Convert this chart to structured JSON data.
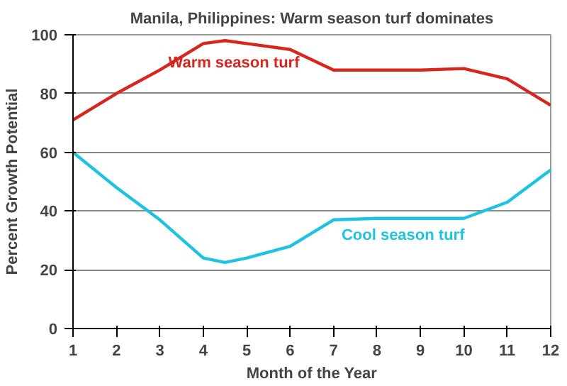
{
  "chart_data": {
    "type": "line",
    "title": "Manila, Philippines: Warm season turf dominates",
    "xlabel": "Month of the Year",
    "ylabel": "Percent Growth Potential",
    "x": [
      1,
      2,
      3,
      4,
      4.5,
      5,
      6,
      7,
      8,
      9,
      10,
      11,
      12
    ],
    "series": [
      {
        "name": "Warm season turf",
        "color": "#d7261e",
        "values": [
          71,
          80,
          88,
          97,
          98,
          97,
          95,
          88,
          88,
          88,
          88.5,
          85,
          76
        ]
      },
      {
        "name": "Cool season turf",
        "color": "#1fc3e0",
        "values": [
          60,
          48,
          37,
          24,
          22.5,
          24,
          28,
          37,
          37.5,
          37.5,
          37.5,
          43,
          54
        ]
      }
    ],
    "xlim": [
      1,
      12
    ],
    "xticks": [
      1,
      2,
      3,
      4,
      5,
      6,
      7,
      8,
      9,
      10,
      11,
      12
    ],
    "ylim": [
      0,
      100
    ],
    "yticks": [
      0,
      20,
      40,
      60,
      80,
      100
    ],
    "grid": "y",
    "marker": "none",
    "line_style": "solid"
  }
}
